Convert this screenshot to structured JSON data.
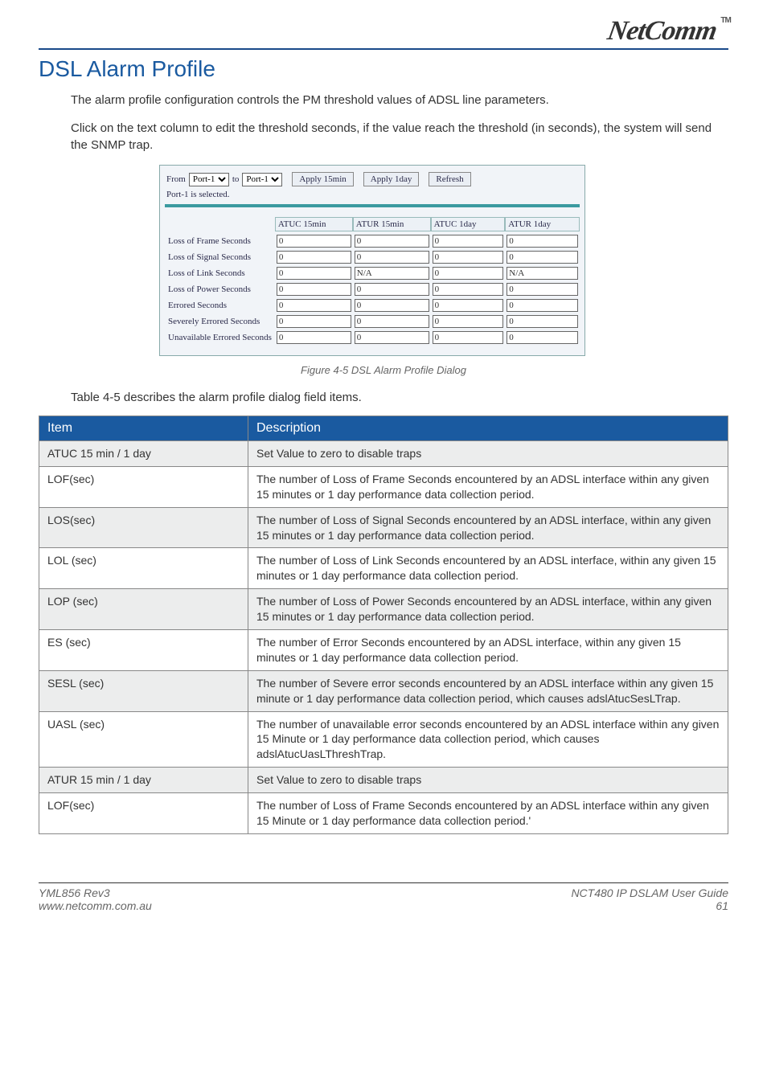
{
  "brand": {
    "name": "NetComm",
    "tm": "TM"
  },
  "section_title": "DSL Alarm Profile",
  "intro_paragraphs": [
    "The alarm profile configuration controls the PM threshold values of ADSL line parameters.",
    "Click on the text column to edit the threshold seconds, if the value reach the threshold (in seconds), the system will send the SNMP trap."
  ],
  "dialog": {
    "from_label": "From",
    "to_label": "to",
    "port_from": "Port-1",
    "port_to": "Port-1",
    "buttons": {
      "apply15": "Apply 15min",
      "apply1d": "Apply 1day",
      "refresh": "Refresh"
    },
    "selected_text": "Port-1 is selected.",
    "columns": [
      "ATUC 15min",
      "ATUR 15min",
      "ATUC 1day",
      "ATUR 1day"
    ],
    "rows": [
      {
        "label": "Loss of Frame Seconds",
        "vals": [
          "0",
          "0",
          "0",
          "0"
        ]
      },
      {
        "label": "Loss of Signal Seconds",
        "vals": [
          "0",
          "0",
          "0",
          "0"
        ]
      },
      {
        "label": "Loss of Link Seconds",
        "vals": [
          "0",
          "N/A",
          "0",
          "N/A"
        ]
      },
      {
        "label": "Loss of Power Seconds",
        "vals": [
          "0",
          "0",
          "0",
          "0"
        ]
      },
      {
        "label": "Errored Seconds",
        "vals": [
          "0",
          "0",
          "0",
          "0"
        ]
      },
      {
        "label": "Severely Errored Seconds",
        "vals": [
          "0",
          "0",
          "0",
          "0"
        ]
      },
      {
        "label": "Unavailable Errored Seconds",
        "vals": [
          "0",
          "0",
          "0",
          "0"
        ]
      }
    ],
    "background": "#f1f4f8",
    "accent": "#3b9aa0"
  },
  "figure_caption": "Figure 4-5 DSL Alarm Profile Dialog",
  "pre_table_note": "Table 4-5 describes the alarm profile dialog field items.",
  "desc_table": {
    "header_bg": "#1a5aa0",
    "header_fg": "#ffffff",
    "shade_bg": "#eceded",
    "headers": [
      "Item",
      "Description"
    ],
    "rows": [
      {
        "item": "ATUC 15 min / 1 day",
        "desc": "Set Value to zero to disable traps",
        "shade": true
      },
      {
        "item": "LOF(sec)",
        "desc": "The number of Loss of Frame Seconds encountered by an ADSL interface within any given 15 minutes or 1 day performance data collection period.",
        "shade": false
      },
      {
        "item": "LOS(sec)",
        "desc": "The number of Loss of Signal Seconds encountered by an ADSL interface, within any given 15 minutes or 1 day performance data collection period.",
        "shade": true
      },
      {
        "item": "LOL (sec)",
        "desc": "The number of Loss of Link Seconds encountered by an ADSL interface, within any given 15 minutes or 1 day performance data collection period.",
        "shade": false
      },
      {
        "item": "LOP (sec)",
        "desc": "The number of Loss of Power Seconds encountered by an ADSL interface, within any given 15 minutes or 1 day performance data collection period.",
        "shade": true
      },
      {
        "item": "ES (sec)",
        "desc": "The number of Error Seconds encountered by an ADSL interface, within any given 15 minutes or 1 day performance data collection period.",
        "shade": false
      },
      {
        "item": "SESL (sec)",
        "desc": "The number of Severe error seconds encountered by an ADSL interface within any given 15 minute or 1 day performance data collection period, which causes adslAtucSesLTrap.",
        "shade": true
      },
      {
        "item": "UASL (sec)",
        "desc": "The number of unavailable error seconds encountered by an ADSL interface within any given 15 Minute or 1 day performance data collection period, which causes adslAtucUasLThreshTrap.",
        "shade": false
      },
      {
        "item": "ATUR 15 min / 1 day",
        "desc": "Set Value to zero to disable traps",
        "shade": true
      },
      {
        "item": "LOF(sec)",
        "desc": "The number of Loss of Frame Seconds encountered by an ADSL interface within any given 15 Minute or 1 day performance data collection period.'",
        "shade": false
      }
    ]
  },
  "footer": {
    "left_line1": "YML856 Rev3",
    "left_line2": "www.netcomm.com.au",
    "right_line1": "NCT480 IP DSLAM User Guide",
    "right_line2": "61"
  }
}
